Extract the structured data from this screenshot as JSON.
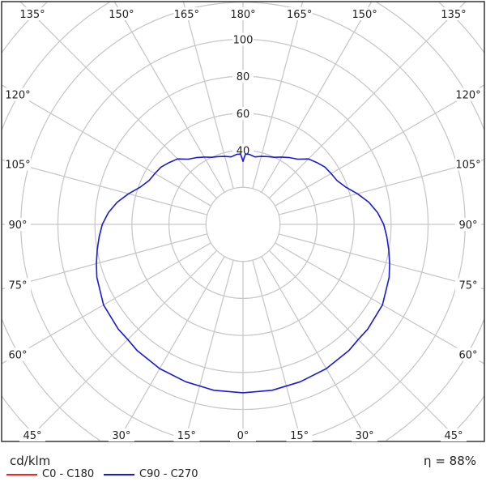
{
  "chart_data": {
    "type": "polar",
    "unit_label": "cd/klm",
    "efficiency_label": "η = 88%",
    "radial_ticks": [
      40,
      60,
      80,
      100
    ],
    "radial_rings": [
      20,
      40,
      60,
      80,
      100,
      120,
      140,
      160
    ],
    "angle_labels_left": [
      "135°",
      "150°",
      "165°",
      "180°",
      "120°",
      "105°",
      "90°",
      "75°",
      "60°",
      "45°",
      "30°",
      "15°",
      "0°"
    ],
    "angle_ticks": [
      0,
      15,
      30,
      45,
      60,
      75,
      90,
      105,
      120,
      135,
      150,
      165,
      180
    ],
    "grid": true,
    "legend": [
      {
        "name": "C0 - C180",
        "color": "#ff2020"
      },
      {
        "name": "C90 - C270",
        "color": "#1a1ad6"
      }
    ],
    "series": [
      {
        "name": "C90 - C270",
        "color": "#1a1ad6",
        "gamma": [
          0,
          10,
          20,
          30,
          40,
          45,
          50,
          60,
          70,
          75,
          80,
          85,
          90,
          95,
          100,
          105,
          110,
          115,
          120,
          125,
          130,
          135,
          140,
          145,
          150,
          155,
          160,
          165,
          170,
          175,
          178,
          180
        ],
        "values": [
          91,
          91,
          90.5,
          90,
          89,
          88,
          88,
          87,
          84,
          82,
          80,
          78,
          76,
          73,
          69,
          64,
          59,
          56,
          55,
          54,
          52,
          50,
          46,
          44,
          42,
          40,
          39,
          38,
          37,
          38,
          38,
          34
        ]
      }
    ]
  }
}
